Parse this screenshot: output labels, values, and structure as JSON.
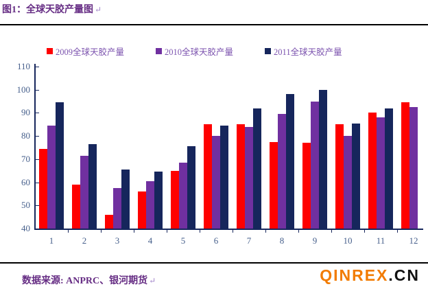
{
  "header": {
    "title": "图1：全球天胶产量图",
    "paragraph_mark": "↵"
  },
  "chart_data": {
    "type": "bar",
    "title": "全球天胶产量图",
    "categories": [
      "1",
      "2",
      "3",
      "4",
      "5",
      "6",
      "7",
      "8",
      "9",
      "10",
      "11",
      "12"
    ],
    "series": [
      {
        "name": "2009全球天胶产量",
        "color": "#FE0000",
        "values": [
          74.5,
          59,
          46,
          56,
          65,
          85,
          85,
          77.5,
          77,
          85,
          90,
          94.5
        ]
      },
      {
        "name": "2010全球天胶产量",
        "color": "#7030A0",
        "values": [
          84.5,
          71.5,
          57.5,
          60.5,
          68.5,
          80,
          84,
          89.5,
          95,
          80,
          88,
          92.5
        ]
      },
      {
        "name": "2011全球天胶产量",
        "color": "#16265C",
        "values": [
          94.5,
          76.5,
          65.5,
          64.5,
          75.5,
          84.5,
          92,
          98,
          100,
          85.5,
          92,
          null
        ]
      }
    ],
    "xlabel": "",
    "ylabel": "",
    "ylim": [
      40,
      110
    ],
    "yticks": [
      40,
      50,
      60,
      70,
      80,
      90,
      100,
      110
    ],
    "legend_position": "top",
    "grid": false
  },
  "footer": {
    "source_label": "数据来源: ANPRC、银河期货",
    "paragraph_mark": "↵",
    "logo_main": "QINREX",
    "logo_suffix": ".CN"
  },
  "colors": {
    "title_text": "#662D84",
    "legend_text": "#7B52AE",
    "tick_label": "#465F8B",
    "axis": "#16265C",
    "divider": "#000000",
    "logo_main": "#F27B00",
    "logo_suffix": "#111111"
  }
}
